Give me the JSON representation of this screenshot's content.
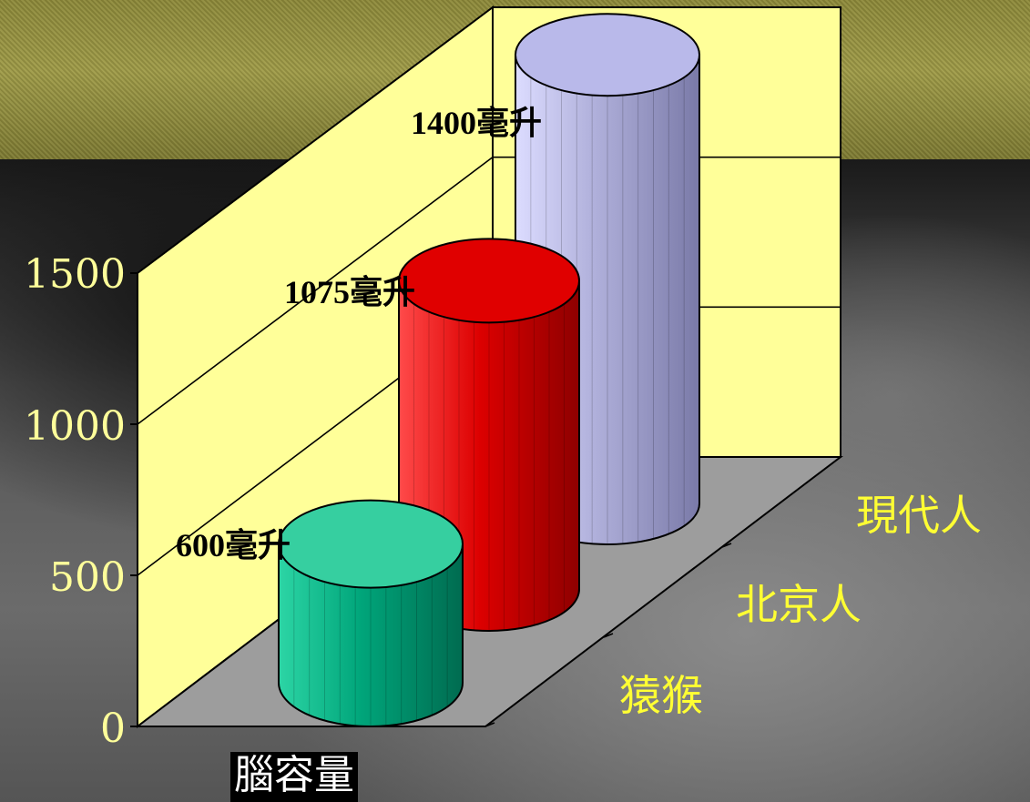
{
  "chart_data": {
    "type": "bar",
    "style": "3d-cylinder",
    "categories": [
      "猿猴",
      "北京人",
      "現代人"
    ],
    "values": [
      600,
      1075,
      1400
    ],
    "value_labels": [
      "600毫升",
      "1075毫升",
      "1400毫升"
    ],
    "xlabel": "腦容量",
    "ylabel": "",
    "yticks": [
      "0",
      "500",
      "1000",
      "1500"
    ],
    "ylim": [
      0,
      1500
    ],
    "grid": true,
    "colors": [
      "#009a72",
      "#d80000",
      "#a8a8d6"
    ],
    "wall_color": "#ffff99",
    "floor_color": "#9d9d9d"
  }
}
